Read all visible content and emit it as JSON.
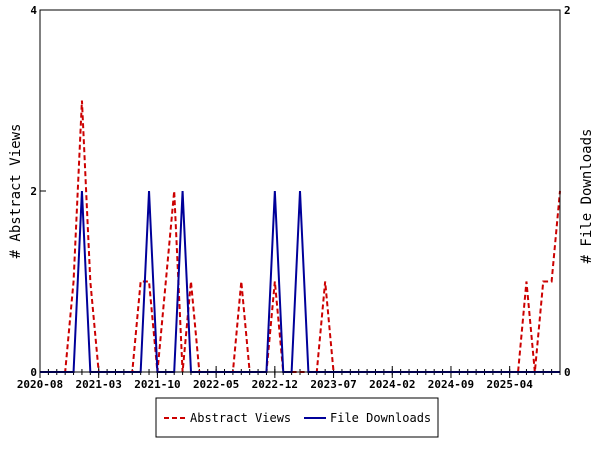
{
  "chart_data": {
    "type": "line",
    "x_tick_labels": [
      "2020-08",
      "2021-03",
      "2021-10",
      "2022-05",
      "2022-12",
      "2023-07",
      "2024-02",
      "2024-09",
      "2025-04"
    ],
    "x_range": [
      "2020-08",
      "2025-10"
    ],
    "y_left": {
      "label": "# Abstract Views",
      "ticks": [
        0,
        2,
        4
      ],
      "range": [
        0,
        4
      ]
    },
    "y_right": {
      "label": "# File Downloads",
      "ticks": [
        0,
        2
      ],
      "range": [
        0,
        2
      ]
    },
    "grid": false,
    "legend_position": "bottom",
    "series": [
      {
        "name": "Abstract Views",
        "axis": "left",
        "color": "#cc0000",
        "style": "dashed",
        "x": [
          "2020-08",
          "2020-09",
          "2020-10",
          "2020-11",
          "2020-12",
          "2021-01",
          "2021-02",
          "2021-03",
          "2021-04",
          "2021-05",
          "2021-06",
          "2021-07",
          "2021-08",
          "2021-09",
          "2021-10",
          "2021-11",
          "2021-12",
          "2022-01",
          "2022-02",
          "2022-03",
          "2022-04",
          "2022-05",
          "2022-06",
          "2022-07",
          "2022-08",
          "2022-09",
          "2022-10",
          "2022-11",
          "2022-12",
          "2023-01",
          "2023-02",
          "2023-03",
          "2023-04",
          "2023-05",
          "2023-06",
          "2023-07",
          "2023-08",
          "2023-09",
          "2023-10",
          "2023-11",
          "2023-12",
          "2024-01",
          "2024-02",
          "2024-03",
          "2024-04",
          "2024-05",
          "2024-06",
          "2024-07",
          "2024-08",
          "2024-09",
          "2024-10",
          "2024-11",
          "2024-12",
          "2025-01",
          "2025-02",
          "2025-03",
          "2025-04",
          "2025-05",
          "2025-06",
          "2025-07",
          "2025-08",
          "2025-09",
          "2025-10"
        ],
        "values": [
          0,
          0,
          0,
          0,
          1,
          3,
          1,
          0,
          0,
          0,
          0,
          0,
          1,
          1,
          0,
          1,
          2,
          0,
          1,
          0,
          0,
          0,
          0,
          0,
          1,
          0,
          0,
          0,
          1,
          0,
          0,
          0,
          0,
          0,
          1,
          0,
          0,
          0,
          0,
          0,
          0,
          0,
          0,
          0,
          0,
          0,
          0,
          0,
          0,
          0,
          0,
          0,
          0,
          0,
          0,
          0,
          0,
          0,
          1,
          0,
          1,
          1,
          2
        ]
      },
      {
        "name": "File Downloads",
        "axis": "right",
        "color": "#000099",
        "style": "solid",
        "x": [
          "2020-08",
          "2020-09",
          "2020-10",
          "2020-11",
          "2020-12",
          "2021-01",
          "2021-02",
          "2021-03",
          "2021-04",
          "2021-05",
          "2021-06",
          "2021-07",
          "2021-08",
          "2021-09",
          "2021-10",
          "2021-11",
          "2021-12",
          "2022-01",
          "2022-02",
          "2022-03",
          "2022-04",
          "2022-05",
          "2022-06",
          "2022-07",
          "2022-08",
          "2022-09",
          "2022-10",
          "2022-11",
          "2022-12",
          "2023-01",
          "2023-02",
          "2023-03",
          "2023-04",
          "2023-05",
          "2023-06",
          "2023-07",
          "2023-08",
          "2023-09",
          "2023-10",
          "2023-11",
          "2023-12",
          "2024-01",
          "2024-02",
          "2024-03",
          "2024-04",
          "2024-05",
          "2024-06",
          "2024-07",
          "2024-08",
          "2024-09",
          "2024-10",
          "2024-11",
          "2024-12",
          "2025-01",
          "2025-02",
          "2025-03",
          "2025-04",
          "2025-05",
          "2025-06",
          "2025-07",
          "2025-08",
          "2025-09",
          "2025-10"
        ],
        "values": [
          0,
          0,
          0,
          0,
          0,
          1,
          0,
          0,
          0,
          0,
          0,
          0,
          0,
          1,
          0,
          0,
          0,
          1,
          0,
          0,
          0,
          0,
          0,
          0,
          0,
          0,
          0,
          0,
          1,
          0,
          0,
          1,
          0,
          0,
          0,
          0,
          0,
          0,
          0,
          0,
          0,
          0,
          0,
          0,
          0,
          0,
          0,
          0,
          0,
          0,
          0,
          0,
          0,
          0,
          0,
          0,
          0,
          0,
          0,
          0,
          0,
          0,
          0
        ]
      }
    ]
  }
}
